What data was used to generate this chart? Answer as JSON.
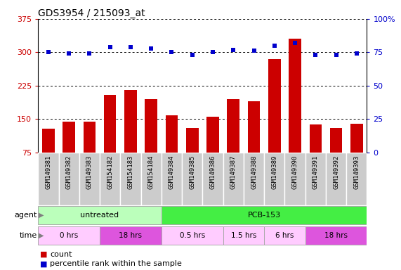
{
  "title": "GDS3954 / 215093_at",
  "samples": [
    "GSM149381",
    "GSM149382",
    "GSM149383",
    "GSM154182",
    "GSM154183",
    "GSM154184",
    "GSM149384",
    "GSM149385",
    "GSM149386",
    "GSM149387",
    "GSM149388",
    "GSM149389",
    "GSM149390",
    "GSM149391",
    "GSM149392",
    "GSM149393"
  ],
  "counts": [
    128,
    145,
    145,
    205,
    215,
    195,
    158,
    130,
    155,
    195,
    190,
    285,
    330,
    138,
    130,
    140
  ],
  "percentiles": [
    75,
    74,
    74,
    79,
    79,
    78,
    75,
    73,
    75,
    77,
    76,
    80,
    82,
    73,
    73,
    74
  ],
  "ylim_left": [
    75,
    375
  ],
  "ylim_right": [
    0,
    100
  ],
  "yticks_left": [
    75,
    150,
    225,
    300,
    375
  ],
  "yticks_right": [
    0,
    25,
    50,
    75,
    100
  ],
  "bar_color": "#cc0000",
  "dot_color": "#0000cc",
  "agent_untreated_color": "#bbffbb",
  "agent_pcb_color": "#44ee44",
  "time_light_color": "#ffccff",
  "time_dark_color": "#dd55dd",
  "block_defs": [
    {
      "label": "0 hrs",
      "start": 0,
      "end": 3,
      "dark": false
    },
    {
      "label": "18 hrs",
      "start": 3,
      "end": 6,
      "dark": true
    },
    {
      "label": "0.5 hrs",
      "start": 6,
      "end": 9,
      "dark": false
    },
    {
      "label": "1.5 hrs",
      "start": 9,
      "end": 11,
      "dark": false
    },
    {
      "label": "6 hrs",
      "start": 11,
      "end": 13,
      "dark": false
    },
    {
      "label": "18 hrs",
      "start": 13,
      "end": 16,
      "dark": true
    }
  ],
  "legend_count_color": "#cc0000",
  "legend_pct_color": "#0000cc"
}
